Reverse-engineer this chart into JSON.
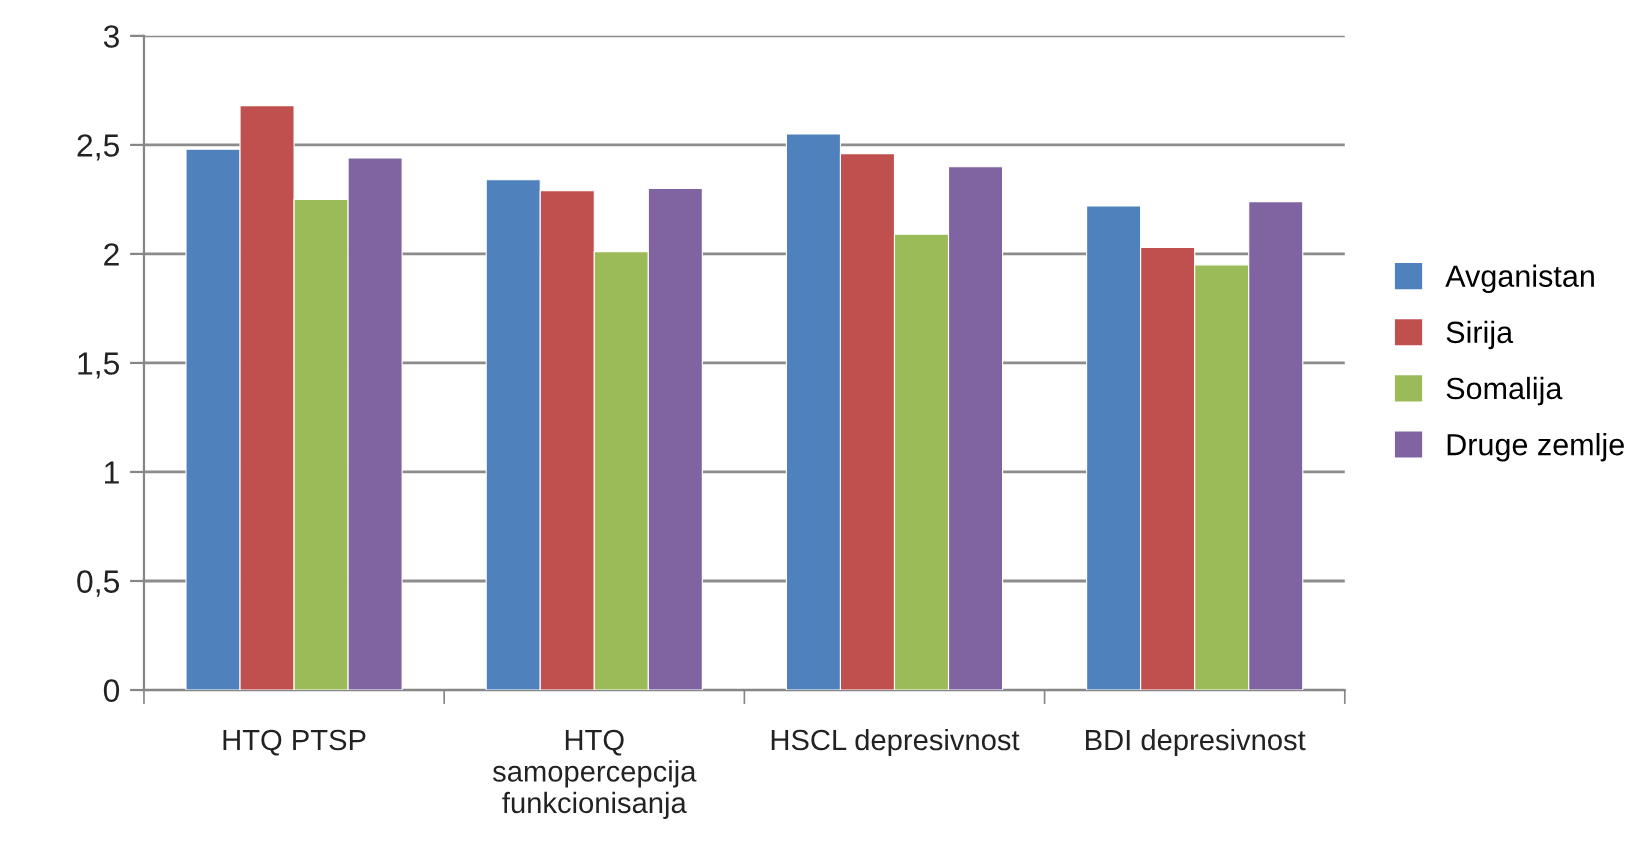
{
  "chart_data": {
    "type": "bar",
    "categories": [
      "HTQ PTSP",
      "HTQ\nsamopercepcija\nfunkcionisanja",
      "HSCL depresivnost",
      "BDI depresivnost"
    ],
    "series": [
      {
        "name": "Avganistan",
        "color": "#4f81bd",
        "values": [
          2.48,
          2.34,
          2.55,
          2.22
        ]
      },
      {
        "name": "Sirija",
        "color": "#c0504d",
        "values": [
          2.68,
          2.29,
          2.46,
          2.03
        ]
      },
      {
        "name": "Somalija",
        "color": "#9bbb59",
        "values": [
          2.25,
          2.01,
          2.09,
          1.95
        ]
      },
      {
        "name": "Druge zemlje",
        "color": "#8064a2",
        "values": [
          2.44,
          2.3,
          2.4,
          2.24
        ]
      }
    ],
    "ylim": [
      0,
      3
    ],
    "yticks": [
      0,
      {
        "value": 0.5,
        "label": "0,5"
      },
      1,
      {
        "value": 1.5,
        "label": "1,5"
      },
      2,
      {
        "value": 2.5,
        "label": "2,5"
      },
      3
    ],
    "grid": "y",
    "legend": "right"
  }
}
